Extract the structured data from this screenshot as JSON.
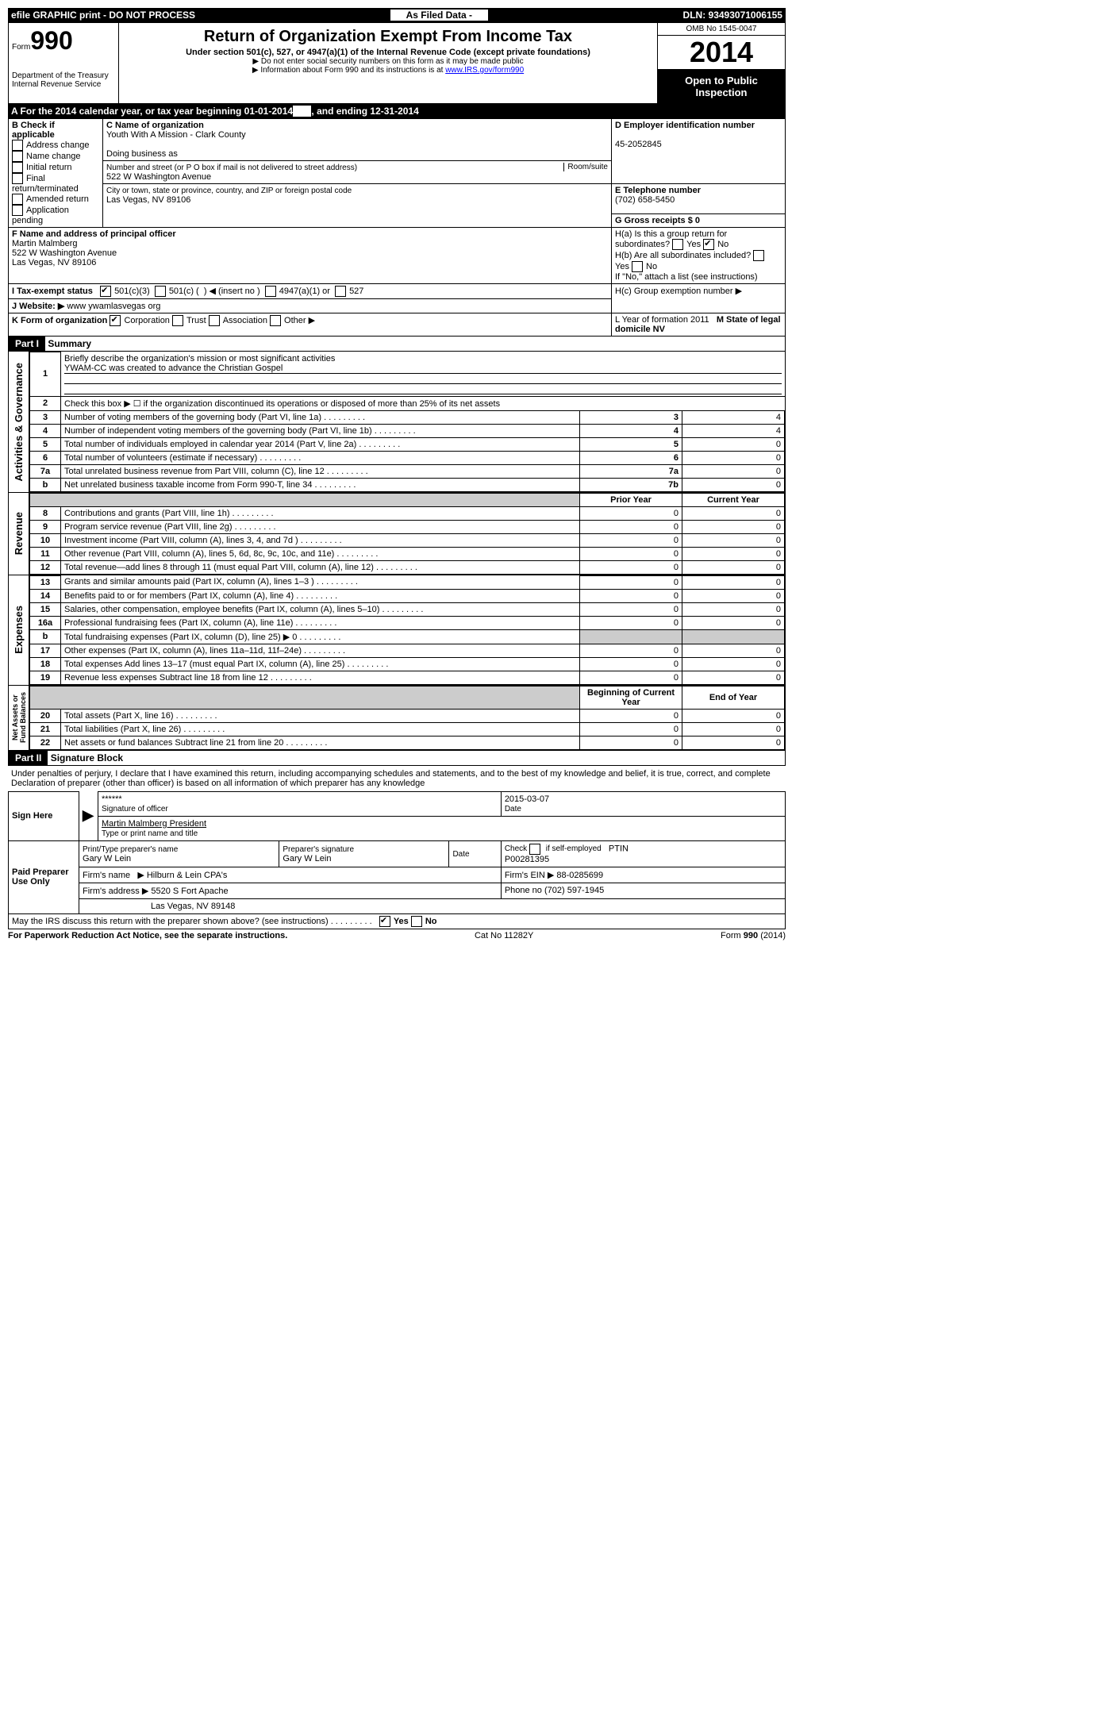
{
  "top": {
    "efile": "efile GRAPHIC print - DO NOT PROCESS",
    "asFiled": "As Filed Data -",
    "dln": "DLN: 93493071006155"
  },
  "header": {
    "formNo": "990",
    "formLabel": "Form",
    "dept": "Department of the Treasury\nInternal Revenue Service",
    "title": "Return of Organization Exempt From Income Tax",
    "subtitle": "Under section 501(c), 527, or 4947(a)(1) of the Internal Revenue Code (except private foundations)",
    "note1": "▶ Do not enter social security numbers on this form as it may be made public",
    "note2": "▶ Information about Form 990 and its instructions is at ",
    "link": "www.IRS.gov/form990",
    "omb": "OMB No 1545-0047",
    "year": "2014",
    "open": "Open to Public Inspection"
  },
  "a": {
    "line": "A For the 2014 calendar year, or tax year beginning 01-01-2014",
    "ending": ", and ending 12-31-2014"
  },
  "b": {
    "title": "B Check if applicable",
    "items": [
      "Address change",
      "Name change",
      "Initial return",
      "Final return/terminated",
      "Amended return",
      "Application pending"
    ]
  },
  "c": {
    "nameLabel": "C Name of organization",
    "name": "Youth With A Mission - Clark County",
    "dba": "Doing business as",
    "addrLabel": "Number and street (or P O  box if mail is not delivered to street address)",
    "room": "Room/suite",
    "addr": "522 W Washington Avenue",
    "cityLabel": "City or town, state or province, country, and ZIP or foreign postal code",
    "city": "Las Vegas, NV  89106"
  },
  "d": {
    "label": "D Employer identification number",
    "value": "45-2052845"
  },
  "e": {
    "label": "E Telephone number",
    "value": "(702) 658-5450"
  },
  "g": {
    "label": "G Gross receipts $ 0"
  },
  "f": {
    "label": "F  Name and address of principal officer",
    "name": "Martin Malmberg",
    "addr": "522 W Washington Avenue",
    "city": "Las Vegas, NV  89106"
  },
  "h": {
    "a": "H(a)  Is this a group return for subordinates?",
    "b": "H(b)  Are all subordinates included?",
    "note": "If \"No,\" attach a list  (see instructions)",
    "c": "H(c)  Group exemption number ▶"
  },
  "i": {
    "label": "I  Tax-exempt status"
  },
  "j": {
    "label": "J  Website: ▶",
    "value": "www ywamlasvegas org"
  },
  "k": {
    "label": "K Form of organization"
  },
  "l": {
    "label": "L Year of formation  2011"
  },
  "m": {
    "label": "M State of legal domicile  NV"
  },
  "part1": {
    "title": "Part I",
    "name": "Summary",
    "line1": "Briefly describe the organization's mission or most significant activities",
    "mission": "YWAM-CC was created to advance the Christian Gospel",
    "line2": "Check this box ▶ ☐ if the organization discontinued its operations or disposed of more than 25% of its net assets",
    "rows": [
      {
        "n": "3",
        "t": "Number of voting members of the governing body (Part VI, line 1a)",
        "r": "3",
        "v": "4"
      },
      {
        "n": "4",
        "t": "Number of independent voting members of the governing body (Part VI, line 1b)",
        "r": "4",
        "v": "4"
      },
      {
        "n": "5",
        "t": "Total number of individuals employed in calendar year 2014 (Part V, line 2a)",
        "r": "5",
        "v": "0"
      },
      {
        "n": "6",
        "t": "Total number of volunteers (estimate if necessary)",
        "r": "6",
        "v": "0"
      },
      {
        "n": "7a",
        "t": "Total unrelated business revenue from Part VIII, column (C), line 12",
        "r": "7a",
        "v": "0"
      },
      {
        "n": "b",
        "t": "Net unrelated business taxable income from Form 990-T, line 34",
        "r": "7b",
        "v": "0"
      }
    ],
    "prior": "Prior Year",
    "current": "Current Year",
    "revenue": [
      {
        "n": "8",
        "t": "Contributions and grants (Part VIII, line 1h)",
        "p": "0",
        "c": "0"
      },
      {
        "n": "9",
        "t": "Program service revenue (Part VIII, line 2g)",
        "p": "0",
        "c": "0"
      },
      {
        "n": "10",
        "t": "Investment income (Part VIII, column (A), lines 3, 4, and 7d )",
        "p": "0",
        "c": "0"
      },
      {
        "n": "11",
        "t": "Other revenue (Part VIII, column (A), lines 5, 6d, 8c, 9c, 10c, and 11e)",
        "p": "0",
        "c": "0"
      },
      {
        "n": "12",
        "t": "Total revenue—add lines 8 through 11 (must equal Part VIII, column (A), line 12)",
        "p": "0",
        "c": "0"
      }
    ],
    "expenses": [
      {
        "n": "13",
        "t": "Grants and similar amounts paid (Part IX, column (A), lines 1–3 )",
        "p": "0",
        "c": "0"
      },
      {
        "n": "14",
        "t": "Benefits paid to or for members (Part IX, column (A), line 4)",
        "p": "0",
        "c": "0"
      },
      {
        "n": "15",
        "t": "Salaries, other compensation, employee benefits (Part IX, column (A), lines 5–10)",
        "p": "0",
        "c": "0"
      },
      {
        "n": "16a",
        "t": "Professional fundraising fees (Part IX, column (A), line 11e)",
        "p": "0",
        "c": "0"
      },
      {
        "n": "b",
        "t": "Total fundraising expenses (Part IX, column (D), line 25) ▶ 0",
        "p": "",
        "c": ""
      },
      {
        "n": "17",
        "t": "Other expenses (Part IX, column (A), lines 11a–11d, 11f–24e)",
        "p": "0",
        "c": "0"
      },
      {
        "n": "18",
        "t": "Total expenses  Add lines 13–17 (must equal Part IX, column (A), line 25)",
        "p": "0",
        "c": "0"
      },
      {
        "n": "19",
        "t": "Revenue less expenses  Subtract line 18 from line 12",
        "p": "0",
        "c": "0"
      }
    ],
    "begin": "Beginning of Current Year",
    "end": "End of Year",
    "netassets": [
      {
        "n": "20",
        "t": "Total assets (Part X, line 16)",
        "p": "0",
        "c": "0"
      },
      {
        "n": "21",
        "t": "Total liabilities (Part X, line 26)",
        "p": "0",
        "c": "0"
      },
      {
        "n": "22",
        "t": "Net assets or fund balances  Subtract line 21 from line 20",
        "p": "0",
        "c": "0"
      }
    ]
  },
  "part2": {
    "title": "Part II",
    "name": "Signature Block",
    "perjury": "Under penalties of perjury, I declare that I have examined this return, including accompanying schedules and statements, and to the best of my knowledge and belief, it is true, correct, and complete  Declaration of preparer (other than officer) is based on all information of which preparer has any knowledge",
    "sign": "Sign Here",
    "sigStars": "******",
    "sigDate": "2015-03-07",
    "sigLabel": "Signature of officer",
    "dateLabel": "Date",
    "officer": "Martin Malmberg President",
    "typeLabel": "Type or print name and title",
    "paid": "Paid Preparer Use Only",
    "prepName": "Gary W Lein",
    "prepSig": "Gary W Lein",
    "ptin": "P00281395",
    "firm": "Hilburn & Lein CPA's",
    "firmEin": "88-0285699",
    "firmAddr": "5520 S Fort Apache",
    "firmCity": "Las Vegas, NV  89148",
    "phone": "(702) 597-1945",
    "discuss": "May the IRS discuss this return with the preparer shown above? (see instructions)"
  },
  "footer": {
    "left": "For Paperwork Reduction Act Notice, see the separate instructions.",
    "mid": "Cat No 11282Y",
    "right": "Form 990 (2014)"
  }
}
